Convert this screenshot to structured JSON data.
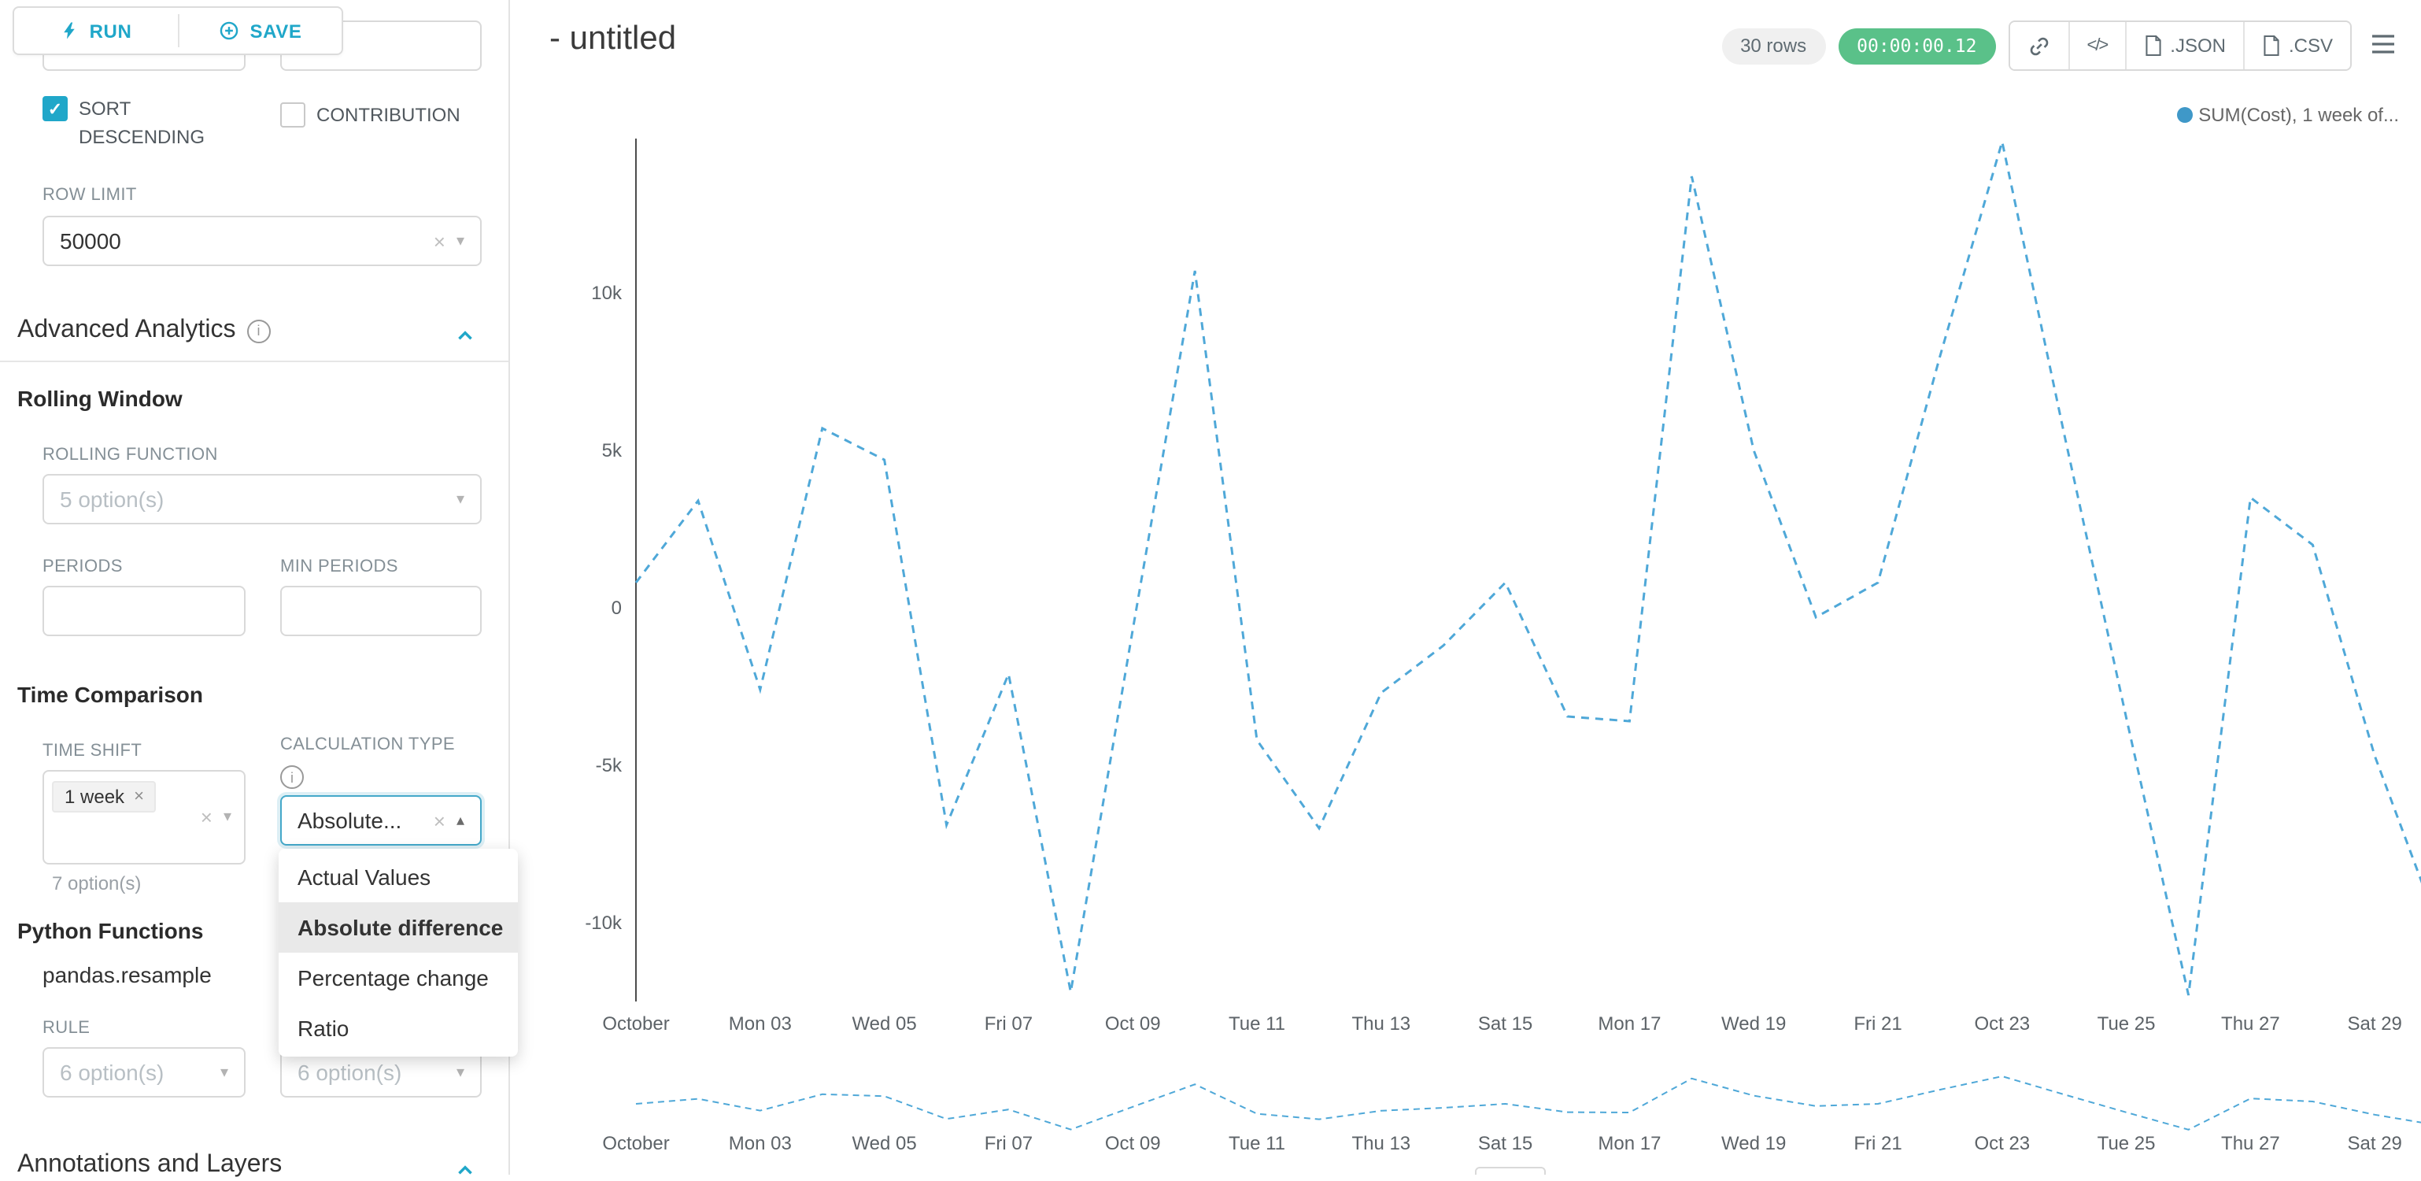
{
  "toolbar": {
    "run": "RUN",
    "save": "SAVE"
  },
  "icons": {
    "clear": "×",
    "check": "✓",
    "caret_down": "▾",
    "caret_up": "▴",
    "code": "</>",
    "info": "i"
  },
  "colors": {
    "accent": "#20a7c9",
    "timer_green": "#5ac189",
    "line_blue": "#4fa8d8"
  },
  "panel": {
    "sort_descending_label": "SORT DESCENDING",
    "sort_descending_checked": true,
    "contribution_label": "CONTRIBUTION",
    "contribution_checked": false,
    "row_limit_label": "ROW LIMIT",
    "row_limit_value": "50000",
    "advanced_analytics_title": "Advanced Analytics",
    "rolling_window_title": "Rolling Window",
    "rolling_function_label": "ROLLING FUNCTION",
    "rolling_function_placeholder": "5 option(s)",
    "periods_label": "PERIODS",
    "min_periods_label": "MIN PERIODS",
    "time_comparison_title": "Time Comparison",
    "time_shift_label": "TIME SHIFT",
    "time_shift_tag": "1 week",
    "time_shift_hint": "7 option(s)",
    "calculation_type_label": "CALCULATION TYPE",
    "calculation_type_value": "Absolute...",
    "dropdown_options": [
      "Actual Values",
      "Absolute difference",
      "Percentage change",
      "Ratio"
    ],
    "dropdown_selected": "Absolute difference",
    "python_functions_title": "Python Functions",
    "python_functions_subtitle": "pandas.resample",
    "rule_label": "RULE",
    "rule_placeholder": "6 option(s)",
    "method_placeholder": "6 option(s)",
    "annotations_title": "Annotations and Layers"
  },
  "header": {
    "title": "- untitled",
    "rows_badge": "30 rows",
    "timer_badge": "00:00:00.12",
    "json_button": ".JSON",
    "csv_button": ".CSV"
  },
  "chart_data": {
    "type": "line",
    "title": "",
    "grid": false,
    "legend_position": "top-right",
    "line_style": "dashed",
    "x_day_of_month": [
      1,
      2,
      3,
      4,
      5,
      6,
      7,
      8,
      9,
      10,
      11,
      12,
      13,
      14,
      15,
      16,
      17,
      18,
      19,
      20,
      21,
      22,
      23,
      24,
      25,
      26,
      27,
      28,
      29,
      30
    ],
    "x_tick_positions": [
      1,
      3,
      5,
      7,
      9,
      11,
      13,
      15,
      17,
      19,
      21,
      23,
      25,
      27,
      29
    ],
    "x_tick_labels": [
      "October",
      "Mon 03",
      "Wed 05",
      "Fri 07",
      "Oct 09",
      "Tue 11",
      "Thu 13",
      "Sat 15",
      "Mon 17",
      "Wed 19",
      "Fri 21",
      "Oct 23",
      "Tue 25",
      "Thu 27",
      "Sat 29"
    ],
    "y_tick_values": [
      10000,
      5000,
      0,
      -5000,
      -10000
    ],
    "y_tick_labels": [
      "10k",
      "5k",
      "0",
      "-5k",
      "-10k"
    ],
    "ylim": [
      -13800,
      15200
    ],
    "has_preview_strip": true,
    "series": [
      {
        "name": "SUM(Cost), 1 week of...",
        "color": "#4fa8d8",
        "dashed": true,
        "values": [
          800,
          3400,
          -2600,
          5700,
          4700,
          -6900,
          -2100,
          -12200,
          -700,
          10700,
          -4200,
          -7000,
          -2700,
          -1200,
          800,
          -3450,
          -3600,
          13700,
          5000,
          -300,
          800,
          8000,
          14800,
          5500,
          -3500,
          -12300,
          3500,
          2000,
          -4700,
          -10000
        ]
      }
    ]
  }
}
